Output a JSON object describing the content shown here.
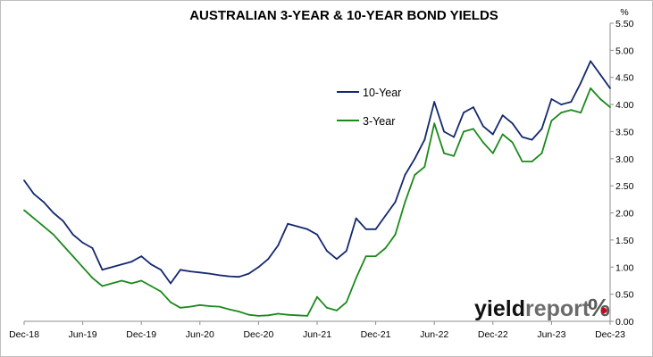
{
  "chart_data": {
    "type": "line",
    "title": "AUSTRALIAN 3-YEAR & 10-YEAR BOND YIELDS",
    "y_unit_label": "%",
    "x_tick_labels": [
      "Dec-18",
      "Jun-19",
      "Dec-19",
      "Jun-20",
      "Dec-20",
      "Jun-21",
      "Dec-21",
      "Jun-22",
      "Dec-22",
      "Jun-23",
      "Dec-23"
    ],
    "x_range": [
      "Dec-18",
      "Dec-23"
    ],
    "ylim": [
      0,
      5.5
    ],
    "y_ticks": [
      "0.00",
      "0.50",
      "1.00",
      "1.50",
      "2.00",
      "2.50",
      "3.00",
      "3.50",
      "4.00",
      "4.50",
      "5.00",
      "5.50"
    ],
    "grid": false,
    "legend_position": "center-right",
    "x": [
      "Dec-18",
      "Jan-19",
      "Feb-19",
      "Mar-19",
      "Apr-19",
      "May-19",
      "Jun-19",
      "Jul-19",
      "Aug-19",
      "Sep-19",
      "Oct-19",
      "Nov-19",
      "Dec-19",
      "Jan-20",
      "Feb-20",
      "Mar-20",
      "Apr-20",
      "May-20",
      "Jun-20",
      "Jul-20",
      "Aug-20",
      "Sep-20",
      "Oct-20",
      "Nov-20",
      "Dec-20",
      "Jan-21",
      "Feb-21",
      "Mar-21",
      "Apr-21",
      "May-21",
      "Jun-21",
      "Jul-21",
      "Aug-21",
      "Sep-21",
      "Oct-21",
      "Nov-21",
      "Dec-21",
      "Jan-22",
      "Feb-22",
      "Mar-22",
      "Apr-22",
      "May-22",
      "Jun-22",
      "Jul-22",
      "Aug-22",
      "Sep-22",
      "Oct-22",
      "Nov-22",
      "Dec-22",
      "Jan-23",
      "Feb-23",
      "Mar-23",
      "Apr-23",
      "May-23",
      "Jun-23",
      "Jul-23",
      "Aug-23",
      "Sep-23",
      "Oct-23",
      "Nov-23",
      "Dec-23"
    ],
    "series": [
      {
        "name": "10-Year",
        "color": "#14286e",
        "values": [
          2.6,
          2.35,
          2.2,
          2.0,
          1.85,
          1.6,
          1.45,
          1.35,
          0.95,
          1.0,
          1.05,
          1.1,
          1.2,
          1.05,
          0.95,
          0.7,
          0.95,
          0.92,
          0.9,
          0.88,
          0.85,
          0.83,
          0.82,
          0.88,
          1.0,
          1.15,
          1.4,
          1.8,
          1.75,
          1.7,
          1.6,
          1.3,
          1.15,
          1.3,
          1.9,
          1.7,
          1.7,
          1.95,
          2.2,
          2.7,
          3.0,
          3.35,
          4.05,
          3.5,
          3.4,
          3.85,
          3.95,
          3.6,
          3.45,
          3.8,
          3.65,
          3.4,
          3.35,
          3.55,
          4.1,
          4.0,
          4.05,
          4.4,
          4.8,
          4.55,
          4.3
        ]
      },
      {
        "name": "3-Year",
        "color": "#1b8a1b",
        "values": [
          2.05,
          1.9,
          1.75,
          1.6,
          1.4,
          1.2,
          1.0,
          0.8,
          0.65,
          0.7,
          0.75,
          0.7,
          0.75,
          0.65,
          0.55,
          0.35,
          0.25,
          0.27,
          0.3,
          0.28,
          0.27,
          0.22,
          0.18,
          0.12,
          0.1,
          0.11,
          0.14,
          0.12,
          0.11,
          0.1,
          0.45,
          0.25,
          0.2,
          0.35,
          0.8,
          1.2,
          1.2,
          1.35,
          1.6,
          2.2,
          2.7,
          2.85,
          3.65,
          3.1,
          3.05,
          3.5,
          3.55,
          3.3,
          3.1,
          3.45,
          3.3,
          2.95,
          2.95,
          3.1,
          3.7,
          3.85,
          3.9,
          3.85,
          4.3,
          4.1,
          3.95
        ]
      }
    ]
  },
  "watermark": {
    "word_dark": "yield",
    "word_light": "report",
    "symbol": "%"
  }
}
